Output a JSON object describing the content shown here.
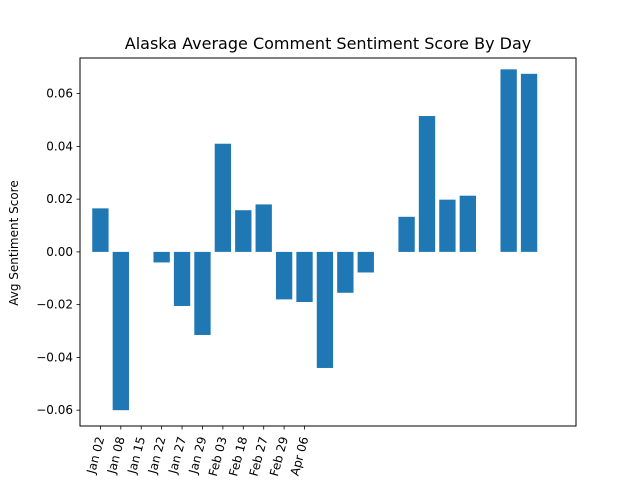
{
  "chart_data": {
    "type": "bar",
    "title": "Alaska Average Comment Sentiment Score By Day",
    "xlabel": "",
    "ylabel": "Avg Sentiment Score",
    "ylim": [
      -0.066,
      0.0735
    ],
    "yticks": [
      -0.06,
      -0.04,
      -0.02,
      0.0,
      0.02,
      0.04,
      0.06
    ],
    "ytick_labels": [
      "−0.06",
      "−0.04",
      "−0.02",
      "0.00",
      "0.02",
      "0.04",
      "0.06"
    ],
    "xlim": [
      -1,
      23.3
    ],
    "xticks": [
      0,
      1,
      2,
      3,
      4,
      5,
      6,
      7,
      8,
      9,
      10
    ],
    "xtick_labels": [
      "Jan 02",
      "Jan 08",
      "Jan 15",
      "Jan 22",
      "Jan 27",
      "Jan 29",
      "Feb 03",
      "Feb 18",
      "Feb 27",
      "Feb 29",
      "Apr 06"
    ],
    "bars": [
      {
        "x": 0,
        "value": 0.0165
      },
      {
        "x": 1,
        "value": -0.06
      },
      {
        "x": 3,
        "value": -0.004
      },
      {
        "x": 4,
        "value": -0.0205
      },
      {
        "x": 5,
        "value": -0.0315
      },
      {
        "x": 6,
        "value": 0.041
      },
      {
        "x": 7,
        "value": 0.0158
      },
      {
        "x": 8,
        "value": 0.018
      },
      {
        "x": 9,
        "value": -0.018
      },
      {
        "x": 10,
        "value": -0.019
      },
      {
        "x": 11,
        "value": -0.044
      },
      {
        "x": 12,
        "value": -0.0155
      },
      {
        "x": 13,
        "value": -0.0078
      },
      {
        "x": 15,
        "value": 0.0133
      },
      {
        "x": 16,
        "value": 0.0515
      },
      {
        "x": 17,
        "value": 0.0198
      },
      {
        "x": 18,
        "value": 0.0213
      },
      {
        "x": 20,
        "value": 0.0692
      },
      {
        "x": 21,
        "value": 0.0675
      }
    ],
    "bar_color": "#1f77b4",
    "grid": false,
    "legend": "none"
  }
}
